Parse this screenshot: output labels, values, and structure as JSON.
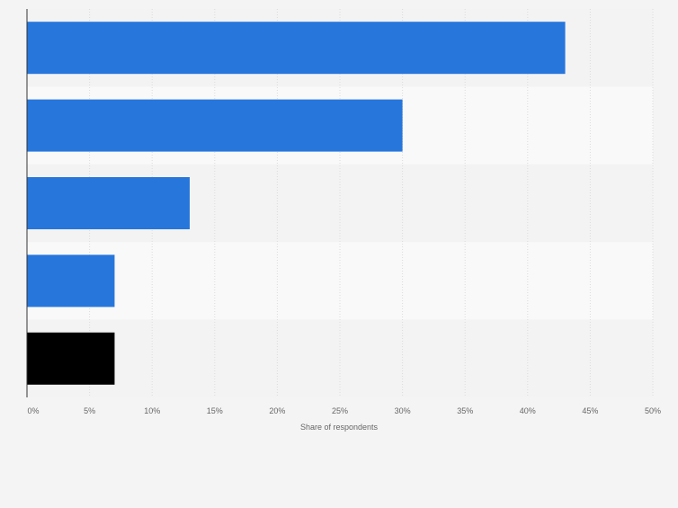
{
  "chart_data": {
    "type": "bar",
    "orientation": "horizontal",
    "categories": [
      "",
      "",
      "",
      "",
      ""
    ],
    "values": [
      43,
      30,
      13,
      7,
      7
    ],
    "bar_colors": [
      "#2776dc",
      "#2776dc",
      "#2776dc",
      "#2776dc",
      "#000000"
    ],
    "title": "",
    "xlabel": "Share of respondents",
    "ylabel": "",
    "xlim": [
      0,
      50
    ],
    "x_ticks": [
      0,
      5,
      10,
      15,
      20,
      25,
      30,
      35,
      40,
      45,
      50
    ],
    "x_tick_labels": [
      "0%",
      "5%",
      "10%",
      "15%",
      "20%",
      "25%",
      "30%",
      "35%",
      "40%",
      "45%",
      "50%"
    ],
    "grid": true,
    "colors": {
      "background": "#f4f4f4",
      "band_light": "#f9f9f9",
      "band_dark": "#f3f3f3",
      "grid": "#dcdcdc",
      "axis": "#333333",
      "tick_text": "#666666"
    }
  }
}
